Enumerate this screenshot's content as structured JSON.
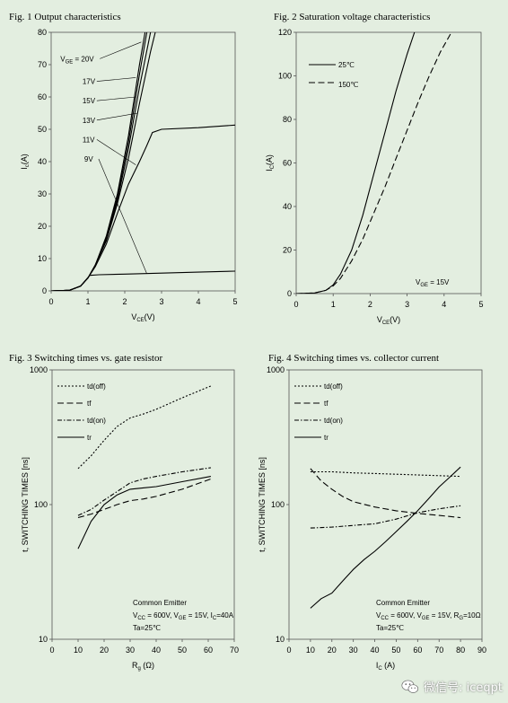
{
  "chart_data": [
    {
      "id": "fig1",
      "type": "line",
      "title": "Fig. 1 Output characteristics",
      "xlabel_main": "V",
      "xlabel_sub": "CE",
      "xlabel_unit": "(V)",
      "ylabel_main": "I",
      "ylabel_sub": "c",
      "ylabel_unit": "(A)",
      "xlim": [
        0,
        5
      ],
      "ylim": [
        0,
        80
      ],
      "xticks": [
        0,
        1,
        2,
        3,
        4,
        5
      ],
      "yticks": [
        0,
        10,
        20,
        30,
        40,
        50,
        60,
        70,
        80
      ],
      "grid": false,
      "series": [
        {
          "name": "VGE = 20V",
          "points": [
            [
              0,
              0
            ],
            [
              0.5,
              0.2
            ],
            [
              0.8,
              1.5
            ],
            [
              1.0,
              4
            ],
            [
              1.2,
              8
            ],
            [
              1.5,
              17
            ],
            [
              1.8,
              30
            ],
            [
              2.1,
              48
            ],
            [
              2.4,
              70
            ],
            [
              2.55,
              80
            ]
          ]
        },
        {
          "name": "17V",
          "points": [
            [
              0,
              0
            ],
            [
              0.5,
              0.2
            ],
            [
              0.8,
              1.5
            ],
            [
              1.0,
              4
            ],
            [
              1.2,
              8
            ],
            [
              1.5,
              16.5
            ],
            [
              1.8,
              29
            ],
            [
              2.1,
              46
            ],
            [
              2.4,
              67
            ],
            [
              2.6,
              80
            ]
          ]
        },
        {
          "name": "15V",
          "points": [
            [
              0,
              0
            ],
            [
              0.5,
              0.2
            ],
            [
              0.8,
              1.5
            ],
            [
              1.0,
              4
            ],
            [
              1.2,
              8
            ],
            [
              1.5,
              16
            ],
            [
              1.8,
              28
            ],
            [
              2.1,
              44
            ],
            [
              2.4,
              63
            ],
            [
              2.7,
              80
            ]
          ]
        },
        {
          "name": "13V",
          "points": [
            [
              0,
              0
            ],
            [
              0.5,
              0.2
            ],
            [
              0.8,
              1.5
            ],
            [
              1.0,
              4
            ],
            [
              1.2,
              8
            ],
            [
              1.5,
              15.5
            ],
            [
              1.8,
              27
            ],
            [
              2.1,
              41
            ],
            [
              2.4,
              58
            ],
            [
              2.7,
              74
            ],
            [
              2.83,
              80
            ]
          ]
        },
        {
          "name": "11V",
          "points": [
            [
              0,
              0
            ],
            [
              0.5,
              0.2
            ],
            [
              0.8,
              1.5
            ],
            [
              1.0,
              4
            ],
            [
              1.2,
              7.5
            ],
            [
              1.5,
              14.5
            ],
            [
              1.8,
              24
            ],
            [
              2.1,
              33
            ],
            [
              2.4,
              40
            ],
            [
              2.6,
              45
            ],
            [
              2.75,
              49
            ],
            [
              3.0,
              50
            ],
            [
              4.0,
              50.5
            ],
            [
              5.0,
              51.3
            ]
          ]
        },
        {
          "name": "9V",
          "points": [
            [
              0,
              0
            ],
            [
              0.5,
              0.2
            ],
            [
              0.8,
              1.5
            ],
            [
              0.95,
              3.5
            ],
            [
              1.05,
              4.8
            ],
            [
              1.3,
              5
            ],
            [
              2.0,
              5.2
            ],
            [
              3.0,
              5.5
            ],
            [
              4.0,
              5.8
            ],
            [
              5.0,
              6.1
            ]
          ]
        }
      ],
      "annotations": [
        {
          "main": "V",
          "sub": "GE",
          "rest": " = 20V",
          "at": [
            0.25,
            71
          ],
          "to": [
            2.45,
            77
          ]
        },
        {
          "main": "",
          "sub": "",
          "rest": "17V",
          "at": [
            0.85,
            64
          ],
          "to": [
            2.3,
            66
          ]
        },
        {
          "main": "",
          "sub": "",
          "rest": "15V",
          "at": [
            0.85,
            58
          ],
          "to": [
            2.3,
            60
          ]
        },
        {
          "main": "",
          "sub": "",
          "rest": "13V",
          "at": [
            0.85,
            52
          ],
          "to": [
            2.35,
            55
          ]
        },
        {
          "main": "",
          "sub": "",
          "rest": "11V",
          "at": [
            0.85,
            46
          ],
          "to": [
            2.3,
            39
          ]
        },
        {
          "main": "",
          "sub": "",
          "rest": "9V",
          "at": [
            0.9,
            40
          ],
          "to": [
            2.6,
            5.3
          ]
        }
      ]
    },
    {
      "id": "fig2",
      "type": "line",
      "title": "Fig. 2 Saturation voltage characteristics",
      "xlabel_main": "V",
      "xlabel_sub": "CE",
      "xlabel_unit": "(V)",
      "ylabel_main": "I",
      "ylabel_sub": "C",
      "ylabel_unit": "(A)",
      "xlim": [
        0,
        5
      ],
      "ylim": [
        0,
        120
      ],
      "xticks": [
        0,
        1,
        2,
        3,
        4,
        5
      ],
      "yticks": [
        0,
        20,
        40,
        60,
        80,
        100,
        120
      ],
      "grid": false,
      "legend": "top-left",
      "series": [
        {
          "name": "25℃",
          "dash": "solid",
          "points": [
            [
              0,
              0
            ],
            [
              0.5,
              0.3
            ],
            [
              0.8,
              1.5
            ],
            [
              1.0,
              4
            ],
            [
              1.2,
              9
            ],
            [
              1.5,
              20
            ],
            [
              1.8,
              36
            ],
            [
              2.1,
              55
            ],
            [
              2.4,
              74
            ],
            [
              2.7,
              93
            ],
            [
              3.0,
              110
            ],
            [
              3.2,
              120
            ]
          ]
        },
        {
          "name": "150℃",
          "dash": "dashed",
          "points": [
            [
              0,
              0
            ],
            [
              0.5,
              0.3
            ],
            [
              0.8,
              1.5
            ],
            [
              1.0,
              3.5
            ],
            [
              1.2,
              7
            ],
            [
              1.5,
              15
            ],
            [
              1.8,
              25
            ],
            [
              2.1,
              37
            ],
            [
              2.4,
              49
            ],
            [
              2.7,
              62
            ],
            [
              3.0,
              75
            ],
            [
              3.3,
              88
            ],
            [
              3.6,
              100
            ],
            [
              3.9,
              111
            ],
            [
              4.2,
              120
            ]
          ]
        }
      ],
      "note": {
        "main": "V",
        "sub": "GE",
        "rest": " = 15V"
      }
    },
    {
      "id": "fig3",
      "type": "line",
      "title": "Fig. 3  Switching times vs. gate resistor",
      "xlabel_main": "R",
      "xlabel_sub": "g",
      "xlabel_unit": " (Ω)",
      "ylabel": "t, SWITCHING TIMES [ns]",
      "xlim": [
        0,
        70
      ],
      "ylim": [
        10,
        1000
      ],
      "yscale": "log",
      "xticks": [
        0,
        10,
        20,
        30,
        40,
        50,
        60,
        70
      ],
      "yticks": [
        10,
        100,
        1000
      ],
      "grid": false,
      "legend": "top-left",
      "series": [
        {
          "name": "td(off)",
          "dash": "dotted",
          "points": [
            [
              10,
              185
            ],
            [
              15,
              230
            ],
            [
              20,
              300
            ],
            [
              25,
              380
            ],
            [
              30,
              440
            ],
            [
              35,
              470
            ],
            [
              40,
              510
            ],
            [
              50,
              620
            ],
            [
              61,
              760
            ]
          ]
        },
        {
          "name": "tf",
          "dash": "dashed",
          "points": [
            [
              10,
              80
            ],
            [
              15,
              85
            ],
            [
              20,
              92
            ],
            [
              25,
              100
            ],
            [
              30,
              107
            ],
            [
              35,
              110
            ],
            [
              40,
              115
            ],
            [
              50,
              130
            ],
            [
              61,
              155
            ]
          ]
        },
        {
          "name": "td(on)",
          "dash": "dashdot",
          "points": [
            [
              10,
              83
            ],
            [
              15,
              92
            ],
            [
              20,
              108
            ],
            [
              25,
              125
            ],
            [
              30,
              145
            ],
            [
              35,
              155
            ],
            [
              40,
              162
            ],
            [
              50,
              175
            ],
            [
              61,
              188
            ]
          ]
        },
        {
          "name": "tr",
          "dash": "solid",
          "points": [
            [
              10,
              47
            ],
            [
              15,
              75
            ],
            [
              20,
              100
            ],
            [
              25,
              118
            ],
            [
              30,
              130
            ],
            [
              35,
              133
            ],
            [
              40,
              136
            ],
            [
              50,
              148
            ],
            [
              61,
              162
            ]
          ]
        }
      ],
      "notes": [
        {
          "main": "Common Emitter",
          "sub": "",
          "rest": ""
        },
        {
          "parts": [
            "V",
            "CC",
            " = 600V, V",
            "GE",
            " = 15V, I",
            "C",
            "=40A"
          ]
        },
        {
          "main": "Ta=25℃",
          "sub": "",
          "rest": ""
        }
      ]
    },
    {
      "id": "fig4",
      "type": "line",
      "title": "Fig. 4 Switching times vs. collector current",
      "xlabel_main": "I",
      "xlabel_sub": "C",
      "xlabel_unit": " (A)",
      "ylabel": "t, SWITCHING TIMES [ns]",
      "xlim": [
        0,
        90
      ],
      "ylim": [
        10,
        1000
      ],
      "yscale": "log",
      "xticks": [
        0,
        10,
        20,
        30,
        40,
        50,
        60,
        70,
        80,
        90
      ],
      "yticks": [
        10,
        100,
        1000
      ],
      "grid": false,
      "legend": "top-left",
      "series": [
        {
          "name": "td(off)",
          "dash": "dotted",
          "points": [
            [
              10,
              175
            ],
            [
              20,
              175
            ],
            [
              30,
              172
            ],
            [
              40,
              170
            ],
            [
              50,
              168
            ],
            [
              60,
              166
            ],
            [
              70,
              164
            ],
            [
              80,
              162
            ]
          ]
        },
        {
          "name": "tf",
          "dash": "dashed",
          "points": [
            [
              10,
              185
            ],
            [
              15,
              150
            ],
            [
              20,
              130
            ],
            [
              25,
              115
            ],
            [
              30,
              105
            ],
            [
              40,
              96
            ],
            [
              50,
              90
            ],
            [
              60,
              86
            ],
            [
              70,
              83
            ],
            [
              80,
              80
            ]
          ]
        },
        {
          "name": "td(on)",
          "dash": "dashdot",
          "points": [
            [
              10,
              67
            ],
            [
              20,
              68
            ],
            [
              30,
              70
            ],
            [
              40,
              72
            ],
            [
              50,
              78
            ],
            [
              60,
              87
            ],
            [
              70,
              93
            ],
            [
              80,
              98
            ]
          ]
        },
        {
          "name": "tr",
          "dash": "solid",
          "points": [
            [
              10,
              17
            ],
            [
              15,
              20
            ],
            [
              20,
              22
            ],
            [
              25,
              27
            ],
            [
              30,
              33
            ],
            [
              35,
              39
            ],
            [
              40,
              45
            ],
            [
              45,
              53
            ],
            [
              50,
              63
            ],
            [
              55,
              75
            ],
            [
              60,
              90
            ],
            [
              65,
              110
            ],
            [
              70,
              135
            ],
            [
              75,
              160
            ],
            [
              80,
              190
            ]
          ]
        }
      ],
      "notes": [
        {
          "main": "Common Emitter",
          "sub": "",
          "rest": ""
        },
        {
          "parts": [
            "V",
            "CC",
            " = 600V, V",
            "GE",
            " = 15V, R",
            "G",
            "=10Ω"
          ]
        },
        {
          "main": "Ta=25℃",
          "sub": "",
          "rest": ""
        }
      ]
    }
  ],
  "watermark": {
    "text": "微信号: iceqpt",
    "icon": "wechat-icon"
  }
}
